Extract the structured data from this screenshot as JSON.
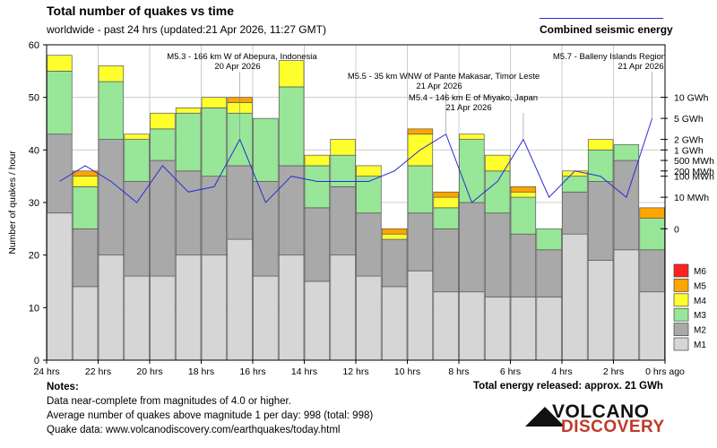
{
  "header": {
    "title": "Total number of quakes vs time",
    "subtitle": "worldwide - past 24 hrs (updated:21 Apr 2026, 11:27 GMT)",
    "energy_legend": "Combined seismic energy"
  },
  "footer": {
    "notes_title": "Notes:",
    "note_1": "Data near-complete from magnitudes of 4.0 or higher.",
    "note_2": "Average number of quakes above magnitude 1 per day: 998 (total: 998)",
    "note_3": "Quake data: www.volcanodiscovery.com/earthquakes/today.html",
    "total_energy": "Total energy released: approx. 21 GWh",
    "logo_word_1": "VOLCANO",
    "logo_word_2": "DISCOVERY"
  },
  "colors": {
    "M1": "#d6d6d6",
    "M2": "#a9a9a9",
    "M3": "#98e698",
    "M4": "#ffff2e",
    "M5": "#ffa500",
    "M6": "#ff2020",
    "energy_line": "#2b2bd6",
    "grid": "#cccccc"
  },
  "chart_data": {
    "type": "bar",
    "stacked": true,
    "title": "Total number of quakes vs time",
    "ylabel": "Number of quakes / hour",
    "xlabel": "",
    "ylim": [
      0,
      60
    ],
    "y_ticks": [
      0,
      10,
      20,
      30,
      40,
      50,
      60
    ],
    "x_tick_labels": [
      "24 hrs",
      "22 hrs",
      "20 hrs",
      "18 hrs",
      "16 hrs",
      "14 hrs",
      "12 hrs",
      "10 hrs",
      "8 hrs",
      "6 hrs",
      "4 hrs",
      "2 hrs",
      "0 hrs ago"
    ],
    "legend": [
      "M6",
      "M5",
      "M4",
      "M3",
      "M2",
      "M1"
    ],
    "legend_position": "bottom-right",
    "series": [
      {
        "name": "M1",
        "values": [
          28,
          14,
          20,
          16,
          16,
          20,
          20,
          23,
          16,
          20,
          15,
          20,
          16,
          14,
          17,
          13,
          13,
          12,
          12,
          12,
          24,
          19,
          21,
          13
        ]
      },
      {
        "name": "M2",
        "values": [
          15,
          11,
          22,
          18,
          22,
          16,
          15,
          14,
          18,
          17,
          14,
          13,
          12,
          9,
          11,
          12,
          17,
          16,
          12,
          9,
          8,
          15,
          17,
          8
        ]
      },
      {
        "name": "M3",
        "values": [
          12,
          8,
          11,
          8,
          6,
          11,
          13,
          10,
          12,
          15,
          8,
          6,
          7,
          0,
          9,
          4,
          12,
          8,
          7,
          4,
          3,
          6,
          3,
          6
        ]
      },
      {
        "name": "M4",
        "values": [
          3,
          2,
          3,
          1,
          3,
          1,
          2,
          2,
          0,
          5,
          2,
          3,
          2,
          1,
          6,
          2,
          1,
          3,
          1,
          0,
          1,
          2,
          0,
          0
        ]
      },
      {
        "name": "M5",
        "values": [
          0,
          1,
          0,
          0,
          0,
          0,
          0,
          1,
          0,
          0,
          0,
          0,
          0,
          1,
          1,
          1,
          0,
          0,
          1,
          0,
          0,
          0,
          0,
          2
        ]
      },
      {
        "name": "M6",
        "values": [
          0,
          0,
          0,
          0,
          0,
          0,
          0,
          0,
          0,
          0,
          0,
          0,
          0,
          0,
          0,
          0,
          0,
          0,
          0,
          0,
          0,
          0,
          0,
          0
        ]
      }
    ],
    "energy": {
      "name": "Combined seismic energy",
      "axis_labels": [
        "10 GWh",
        "5 GWh",
        "2 GWh",
        "1 GWh",
        "500 MWh",
        "200 MWh",
        "100 MWh",
        "10 MWh",
        "0"
      ],
      "axis_levels": [
        50,
        46,
        42,
        40,
        38,
        36,
        35,
        31,
        25
      ],
      "values": [
        34,
        37,
        34,
        30,
        37,
        32,
        33,
        42,
        30,
        35,
        34,
        34,
        34,
        36,
        40,
        43,
        30,
        34,
        42,
        31,
        36,
        35,
        31,
        46
      ]
    },
    "annotations": [
      {
        "bar": 7,
        "text": "M5.3 - 166 km W of Abepura, Indonesia",
        "text2": "20 Apr 2026"
      },
      {
        "bar": 15,
        "text": "M5.5 - 35 km WNW of Pante Makasar, Timor Leste",
        "text2": "21 Apr 2026"
      },
      {
        "bar": 18,
        "text": "M5.4 - 146 km E of Miyako, Japan",
        "text2": "21 Apr 2026"
      },
      {
        "bar": 23,
        "text": "M5.7 - Balleny Islands Region",
        "text2": "21 Apr 2026"
      }
    ]
  }
}
